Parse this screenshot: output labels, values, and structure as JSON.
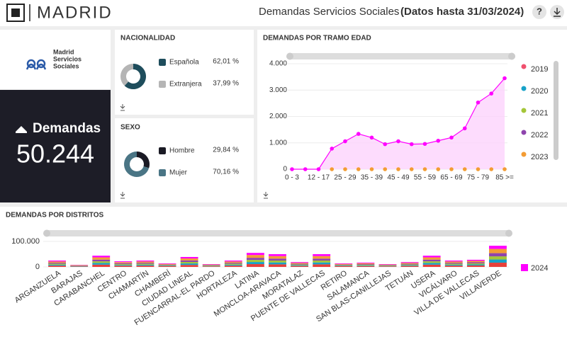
{
  "header": {
    "logo": "MADRID",
    "title": "Demandas Servicios Sociales",
    "subtitle": "(Datos hasta 31/03/2024)",
    "help": "?"
  },
  "brand": {
    "line1": "Madrid",
    "line2": "Servicios",
    "line3": "Sociales"
  },
  "kpi": {
    "label": "Demandas",
    "value": "50.244"
  },
  "chart_data": [
    {
      "type": "donut",
      "title": "NACIONALIDAD",
      "categories": [
        "Española",
        "Extranjera"
      ],
      "values": [
        62.01,
        37.99
      ],
      "value_labels": [
        "62,01 %",
        "37,99 %"
      ],
      "colors": [
        "#1e4d5c",
        "#b5b5b5"
      ]
    },
    {
      "type": "donut",
      "title": "SEXO",
      "categories": [
        "Hombre",
        "Mujer"
      ],
      "values": [
        29.84,
        70.16
      ],
      "value_labels": [
        "29,84 %",
        "70,16 %"
      ],
      "colors": [
        "#1a1a24",
        "#4a7585"
      ]
    },
    {
      "type": "line",
      "title": "DEMANDAS POR TRAMO EDAD",
      "categories": [
        "0 - 3",
        null,
        "12 - 17",
        null,
        "25 - 29",
        null,
        "35 - 39",
        null,
        "45 - 49",
        null,
        "55 - 59",
        null,
        "65 - 69",
        null,
        "75 - 79",
        null,
        "85 >="
      ],
      "series": [
        {
          "color": "#ff00ff",
          "values": [
            0,
            0,
            0,
            780,
            1060,
            1340,
            1200,
            950,
            1060,
            950,
            960,
            1080,
            1200,
            1550,
            2530,
            2870,
            3450
          ]
        },
        {
          "color": "#f39c34",
          "values": [
            null,
            null,
            null,
            0,
            0,
            0,
            0,
            0,
            0,
            0,
            0,
            0,
            0,
            0,
            0,
            0,
            0
          ]
        }
      ],
      "legend": [
        {
          "name": "2019",
          "color": "#f0506e"
        },
        {
          "name": "2020",
          "color": "#17a2c8"
        },
        {
          "name": "2021",
          "color": "#a4c639"
        },
        {
          "name": "2022",
          "color": "#8e44ad"
        },
        {
          "name": "2023",
          "color": "#f39c34"
        }
      ],
      "ylim": [
        0,
        4000
      ],
      "yticks": [
        0,
        {
          "value": 1000,
          "label": "1.000"
        },
        {
          "value": 2000,
          "label": "2.000"
        },
        {
          "value": 3000,
          "label": "3.000"
        },
        {
          "value": 4000,
          "label": "4.000"
        }
      ]
    },
    {
      "type": "stacked_bar",
      "title": "DEMANDAS POR DISTRITOS",
      "categories": [
        "ARGANZUELA",
        "BARAJAS",
        "CARABANCHEL",
        "CENTRO",
        "CHAMARTÍN",
        "CHAMBERÍ",
        "CIUDAD LINEAL",
        "FUENCARRAL-EL PARDO",
        "HORTALEZA",
        "LATINA",
        "MONCLOA-ARAVACA",
        "MORATALAZ",
        "PUENTE DE VALLECAS",
        "RETIRO",
        "SALAMANCA",
        "SAN BLAS-CANILLEJAS",
        "TETUÁN",
        "USERA",
        "VICÁLVARO",
        "VILLA DE VALLECAS",
        "VILLAVERDE"
      ],
      "series": [
        {
          "color": "#e8403a",
          "values": [
            5000,
            1600,
            8800,
            4400,
            5000,
            2800,
            7800,
            2200,
            5000,
            11000,
            10000,
            3800,
            10000,
            2800,
            3400,
            2200,
            3800,
            8800,
            5000,
            5600,
            16600
          ]
        },
        {
          "color": "#17a2c8",
          "values": [
            3750,
            1200,
            6600,
            3300,
            3750,
            2100,
            5850,
            1650,
            3750,
            8250,
            7500,
            2850,
            7500,
            2100,
            2550,
            1650,
            2850,
            6600,
            3750,
            4200,
            12450
          ]
        },
        {
          "color": "#a4c639",
          "values": [
            3750,
            1200,
            6600,
            3300,
            3750,
            2100,
            5850,
            1650,
            3750,
            8250,
            7500,
            2850,
            7500,
            2100,
            2550,
            1650,
            2850,
            6600,
            3750,
            4200,
            12450
          ]
        },
        {
          "color": "#8e44ad",
          "values": [
            3750,
            1200,
            6600,
            3300,
            3750,
            2100,
            5850,
            1650,
            3750,
            8250,
            7500,
            2850,
            7500,
            2100,
            2550,
            1650,
            2850,
            6600,
            3750,
            4200,
            12450
          ]
        },
        {
          "color": "#f39c34",
          "values": [
            5000,
            1600,
            8800,
            4400,
            5000,
            2800,
            7800,
            2200,
            5000,
            11000,
            10000,
            3800,
            10000,
            2800,
            3400,
            2200,
            3800,
            8800,
            5000,
            5600,
            16600
          ]
        },
        {
          "name": "2024",
          "color": "#ff00ff",
          "values": [
            3750,
            1200,
            6600,
            3300,
            3750,
            2100,
            5850,
            1650,
            3750,
            8250,
            7500,
            2850,
            7500,
            2100,
            2550,
            1650,
            2850,
            6600,
            3750,
            4200,
            12450
          ]
        }
      ],
      "ylim": [
        0,
        100000
      ],
      "yticks": [
        0,
        {
          "value": 100000,
          "label": "100.000"
        }
      ]
    }
  ]
}
